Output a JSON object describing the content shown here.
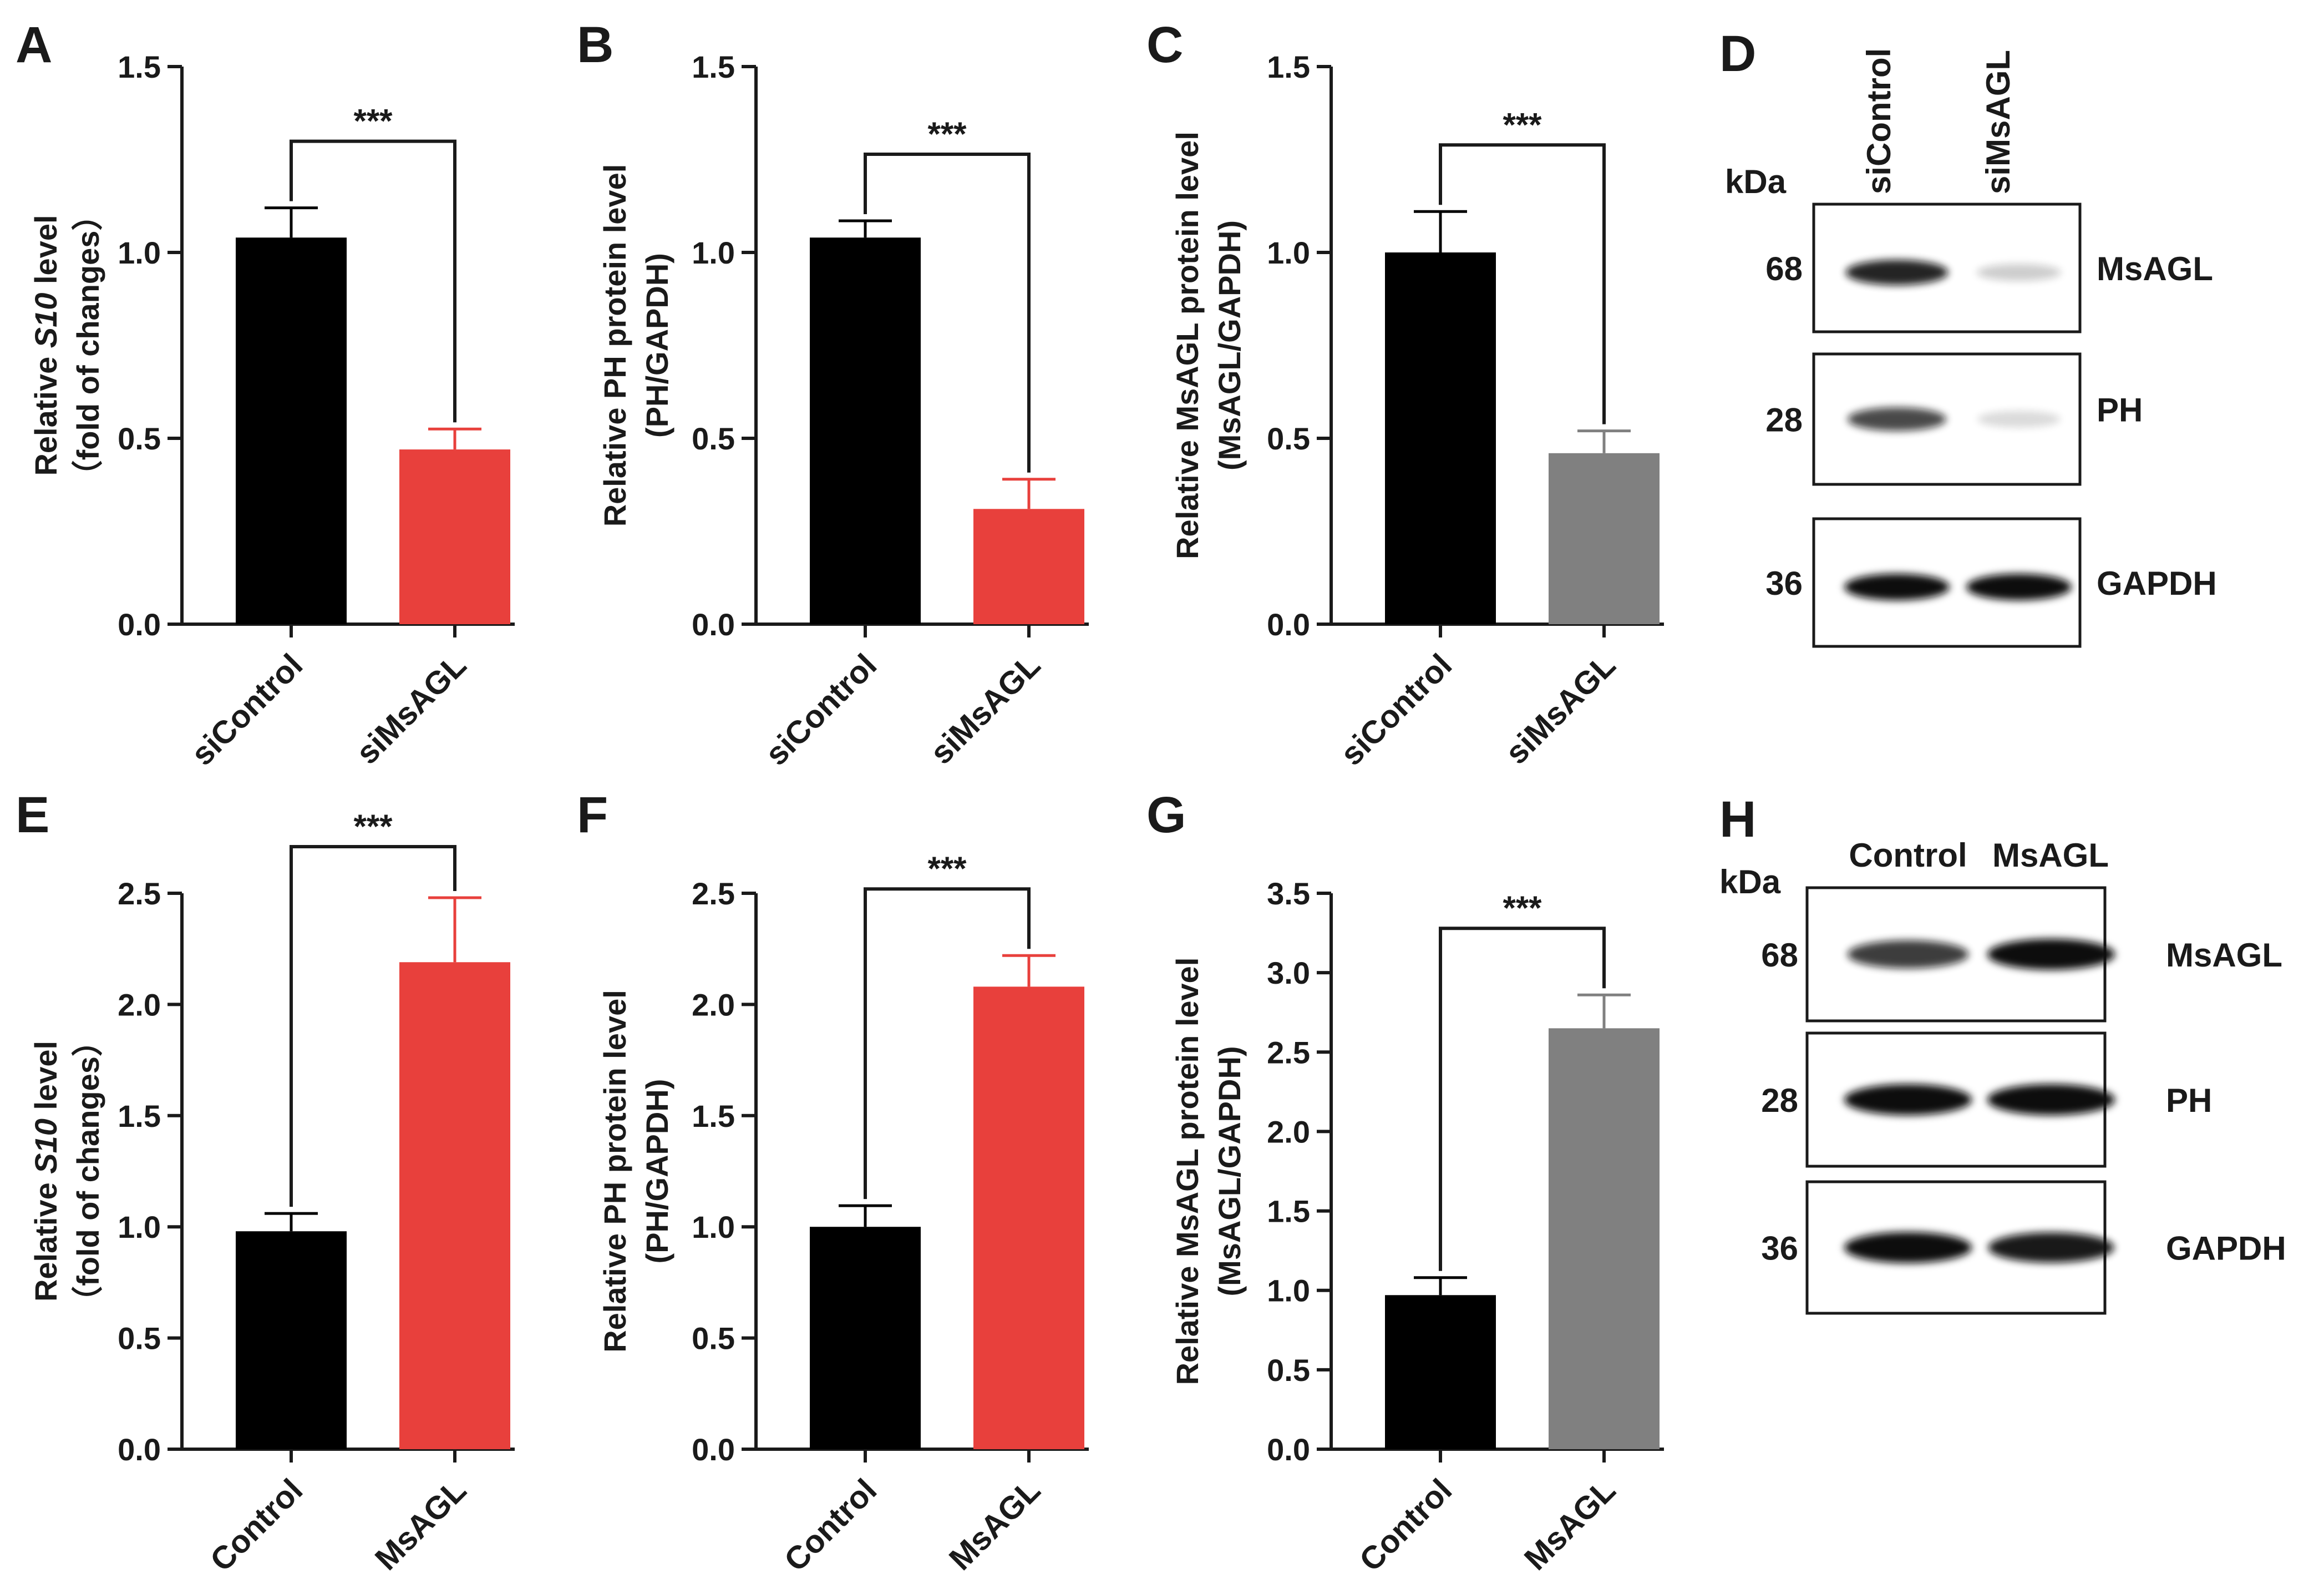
{
  "figure": {
    "colors": {
      "black": "#000000",
      "red": "#e8403c",
      "gray": "#808080",
      "axis": "#1a1a1a"
    },
    "blot_D": {
      "letter": "D",
      "kda": "kDa",
      "lanes": [
        "siControl",
        "siMsAGL"
      ],
      "rows": [
        {
          "mw": "68",
          "name": "MsAGL",
          "intensity": [
            0.9,
            0.2
          ]
        },
        {
          "mw": "28",
          "name": "PH",
          "intensity": [
            0.75,
            0.15
          ]
        },
        {
          "mw": "36",
          "name": "GAPDH",
          "intensity": [
            1.0,
            1.0
          ]
        }
      ]
    },
    "blot_H": {
      "letter": "H",
      "kda": "kDa",
      "lanes": [
        "Control",
        "MsAGL"
      ],
      "rows": [
        {
          "mw": "68",
          "name": "MsAGL",
          "intensity": [
            0.8,
            1.0
          ]
        },
        {
          "mw": "28",
          "name": "PH",
          "intensity": [
            1.0,
            1.0
          ]
        },
        {
          "mw": "36",
          "name": "GAPDH",
          "intensity": [
            1.0,
            0.95
          ]
        }
      ]
    }
  },
  "chart_data": [
    {
      "panel": "A",
      "type": "bar",
      "categories": [
        "siControl",
        "siMsAGL"
      ],
      "values": [
        1.04,
        0.47
      ],
      "errors": [
        0.08,
        0.055
      ],
      "colors": [
        "#000000",
        "#e8403c"
      ],
      "ylim": [
        0,
        1.5
      ],
      "yticks": [
        "0.0",
        "0.5",
        "1.0",
        "1.5"
      ],
      "ylabel": [
        "Relative ",
        "S10",
        " level"
      ],
      "ylabel2": "（fold of changes）",
      "significance": "***"
    },
    {
      "panel": "B",
      "type": "bar",
      "categories": [
        "siControl",
        "siMsAGL"
      ],
      "values": [
        1.04,
        0.31
      ],
      "errors": [
        0.045,
        0.08
      ],
      "colors": [
        "#000000",
        "#e8403c"
      ],
      "ylim": [
        0,
        1.5
      ],
      "yticks": [
        "0.0",
        "0.5",
        "1.0",
        "1.5"
      ],
      "ylabel": [
        "Relative PH protein level",
        "",
        ""
      ],
      "ylabel2": "(PH/GAPDH)",
      "significance": "***"
    },
    {
      "panel": "C",
      "type": "bar",
      "categories": [
        "siControl",
        "siMsAGL"
      ],
      "values": [
        1.0,
        0.46
      ],
      "errors": [
        0.11,
        0.06
      ],
      "colors": [
        "#000000",
        "#808080"
      ],
      "ylim": [
        0,
        1.5
      ],
      "yticks": [
        "0.0",
        "0.5",
        "1.0",
        "1.5"
      ],
      "ylabel": [
        "Relative MsAGL protein level",
        "",
        ""
      ],
      "ylabel2": "(MsAGL/GAPDH)",
      "significance": "***"
    },
    {
      "panel": "E",
      "type": "bar",
      "categories": [
        "Control",
        "MsAGL"
      ],
      "values": [
        0.98,
        2.19
      ],
      "errors": [
        0.08,
        0.29
      ],
      "colors": [
        "#000000",
        "#e8403c"
      ],
      "ylim": [
        0,
        2.5
      ],
      "yticks": [
        "0.0",
        "0.5",
        "1.0",
        "1.5",
        "2.0",
        "2.5"
      ],
      "ylabel": [
        "Relative ",
        "S10",
        " level"
      ],
      "ylabel2": "（fold of changes）",
      "significance": "***"
    },
    {
      "panel": "F",
      "type": "bar",
      "categories": [
        "Control",
        "MsAGL"
      ],
      "values": [
        1.0,
        2.08
      ],
      "errors": [
        0.095,
        0.14
      ],
      "colors": [
        "#000000",
        "#e8403c"
      ],
      "ylim": [
        0,
        2.5
      ],
      "yticks": [
        "0.0",
        "0.5",
        "1.0",
        "1.5",
        "2.0",
        "2.5"
      ],
      "ylabel": [
        "Relative PH protein level",
        "",
        ""
      ],
      "ylabel2": "(PH/GAPDH)",
      "significance": "***"
    },
    {
      "panel": "G",
      "type": "bar",
      "categories": [
        "Control",
        "MsAGL"
      ],
      "values": [
        0.97,
        2.65
      ],
      "errors": [
        0.11,
        0.21
      ],
      "colors": [
        "#000000",
        "#808080"
      ],
      "ylim": [
        0,
        3.5
      ],
      "yticks": [
        "0.0",
        "0.5",
        "1.0",
        "1.5",
        "2.0",
        "2.5",
        "3.0",
        "3.5"
      ],
      "ylabel": [
        "Relative MsAGL protein level",
        "",
        ""
      ],
      "ylabel2": "(MsAGL/GAPDH)",
      "significance": "***"
    }
  ]
}
